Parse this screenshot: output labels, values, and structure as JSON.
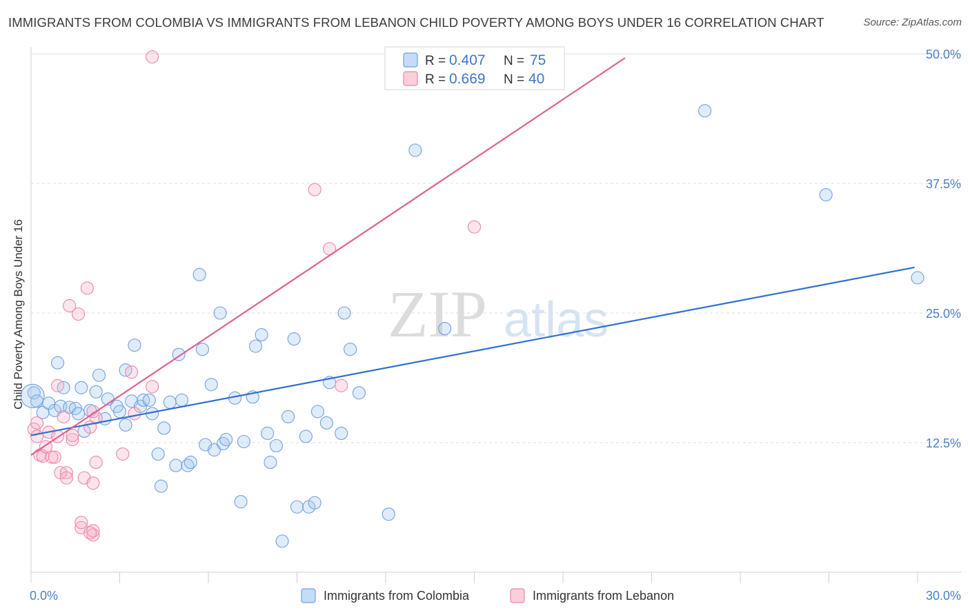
{
  "header": {
    "title": "IMMIGRANTS FROM COLOMBIA VS IMMIGRANTS FROM LEBANON CHILD POVERTY AMONG BOYS UNDER 16 CORRELATION CHART",
    "source": "Source: ZipAtlas.com"
  },
  "watermark": {
    "zip": "ZIP",
    "atlas": "atlas"
  },
  "legend": {
    "series": [
      {
        "r_label": "R = ",
        "r_value": "0.407",
        "n_label": "N = ",
        "n_value": "75",
        "color": "#6fa0e0"
      },
      {
        "r_label": "R = ",
        "r_value": "0.669",
        "n_label": "N = ",
        "n_value": "40",
        "color": "#ee85a6"
      }
    ]
  },
  "chart_data": {
    "type": "scatter",
    "title": "IMMIGRANTS FROM COLOMBIA VS IMMIGRANTS FROM LEBANON CHILD POVERTY AMONG BOYS UNDER 16 CORRELATION CHART",
    "xlabel": "",
    "ylabel": "Child Poverty Among Boys Under 16",
    "xlim": [
      0,
      30
    ],
    "ylim": [
      0,
      50
    ],
    "x_tick_labels": [
      "0.0%",
      "30.0%"
    ],
    "y_ticks": [
      {
        "value": 12.5,
        "label": "12.5%"
      },
      {
        "value": 25.0,
        "label": "25.0%"
      },
      {
        "value": 37.5,
        "label": "37.5%"
      },
      {
        "value": 50.0,
        "label": "50.0%"
      }
    ],
    "grid": "horizontal dashed",
    "legend_position": "top-center",
    "series": [
      {
        "name": "Immigrants from Colombia",
        "color": "#6fa0e0",
        "trend": {
          "x": [
            0,
            29.9
          ],
          "y": [
            13.2,
            29.4
          ]
        },
        "points": [
          [
            0.1,
            17.3
          ],
          [
            0.2,
            16.5
          ],
          [
            0.4,
            15.4
          ],
          [
            0.6,
            16.3
          ],
          [
            0.8,
            15.6
          ],
          [
            0.9,
            20.2
          ],
          [
            1.0,
            16.0
          ],
          [
            1.1,
            17.8
          ],
          [
            1.3,
            15.9
          ],
          [
            1.5,
            15.8
          ],
          [
            1.6,
            15.3
          ],
          [
            1.7,
            17.8
          ],
          [
            1.8,
            13.6
          ],
          [
            2.0,
            15.6
          ],
          [
            2.2,
            17.4
          ],
          [
            2.3,
            19.0
          ],
          [
            2.5,
            14.8
          ],
          [
            2.6,
            16.7
          ],
          [
            2.9,
            16.0
          ],
          [
            3.0,
            15.5
          ],
          [
            3.2,
            19.5
          ],
          [
            3.2,
            14.2
          ],
          [
            3.4,
            16.5
          ],
          [
            3.5,
            21.9
          ],
          [
            3.7,
            16.0
          ],
          [
            3.8,
            16.6
          ],
          [
            4.0,
            16.6
          ],
          [
            4.1,
            15.3
          ],
          [
            4.3,
            11.4
          ],
          [
            4.4,
            8.3
          ],
          [
            4.5,
            13.9
          ],
          [
            4.7,
            16.4
          ],
          [
            4.9,
            10.3
          ],
          [
            5.0,
            21.0
          ],
          [
            5.1,
            16.6
          ],
          [
            5.3,
            10.3
          ],
          [
            5.4,
            10.6
          ],
          [
            5.7,
            28.7
          ],
          [
            5.8,
            21.5
          ],
          [
            5.9,
            12.3
          ],
          [
            6.1,
            18.1
          ],
          [
            6.2,
            11.8
          ],
          [
            6.4,
            25.0
          ],
          [
            6.5,
            12.4
          ],
          [
            6.6,
            12.8
          ],
          [
            6.9,
            16.8
          ],
          [
            7.1,
            6.8
          ],
          [
            7.2,
            12.6
          ],
          [
            7.5,
            16.9
          ],
          [
            7.6,
            21.8
          ],
          [
            7.8,
            22.9
          ],
          [
            8.0,
            13.4
          ],
          [
            8.1,
            10.6
          ],
          [
            8.3,
            12.2
          ],
          [
            8.5,
            3.0
          ],
          [
            8.7,
            15.0
          ],
          [
            8.9,
            22.5
          ],
          [
            9.0,
            6.3
          ],
          [
            9.3,
            13.1
          ],
          [
            9.4,
            6.3
          ],
          [
            9.6,
            6.7
          ],
          [
            9.7,
            15.5
          ],
          [
            10.0,
            14.4
          ],
          [
            10.1,
            18.3
          ],
          [
            10.5,
            13.4
          ],
          [
            10.6,
            25.0
          ],
          [
            10.8,
            21.5
          ],
          [
            11.1,
            17.3
          ],
          [
            12.1,
            5.6
          ],
          [
            13.0,
            40.7
          ],
          [
            14.0,
            23.5
          ],
          [
            22.8,
            44.5
          ],
          [
            26.9,
            36.4
          ],
          [
            30.0,
            28.4
          ],
          [
            0.05,
            17.0
          ]
        ]
      },
      {
        "name": "Immigrants from Lebanon",
        "color": "#ee85a6",
        "trend": {
          "x": [
            0,
            20.1
          ],
          "y": [
            11.3,
            49.6
          ]
        },
        "points": [
          [
            0.1,
            13.8
          ],
          [
            0.2,
            13.1
          ],
          [
            0.3,
            11.3
          ],
          [
            0.4,
            11.2
          ],
          [
            0.5,
            12.1
          ],
          [
            0.6,
            13.5
          ],
          [
            0.7,
            11.1
          ],
          [
            0.8,
            11.1
          ],
          [
            0.9,
            13.1
          ],
          [
            0.9,
            18.0
          ],
          [
            1.0,
            9.6
          ],
          [
            1.1,
            15.0
          ],
          [
            1.2,
            9.6
          ],
          [
            1.2,
            9.1
          ],
          [
            1.3,
            25.7
          ],
          [
            1.4,
            12.8
          ],
          [
            1.4,
            13.2
          ],
          [
            1.6,
            24.9
          ],
          [
            1.7,
            4.3
          ],
          [
            1.7,
            4.8
          ],
          [
            1.8,
            9.1
          ],
          [
            1.9,
            27.4
          ],
          [
            2.0,
            14.0
          ],
          [
            2.1,
            8.6
          ],
          [
            2.2,
            10.6
          ],
          [
            2.2,
            14.9
          ],
          [
            2.1,
            15.5
          ],
          [
            2.1,
            3.6
          ],
          [
            2.1,
            4.0
          ],
          [
            3.1,
            11.4
          ],
          [
            3.4,
            19.3
          ],
          [
            3.5,
            15.3
          ],
          [
            4.1,
            17.9
          ],
          [
            4.1,
            49.7
          ],
          [
            9.6,
            36.9
          ],
          [
            10.1,
            31.2
          ],
          [
            10.5,
            18.0
          ],
          [
            15.0,
            33.3
          ],
          [
            0.2,
            14.4
          ],
          [
            2.0,
            3.8
          ]
        ]
      }
    ]
  }
}
